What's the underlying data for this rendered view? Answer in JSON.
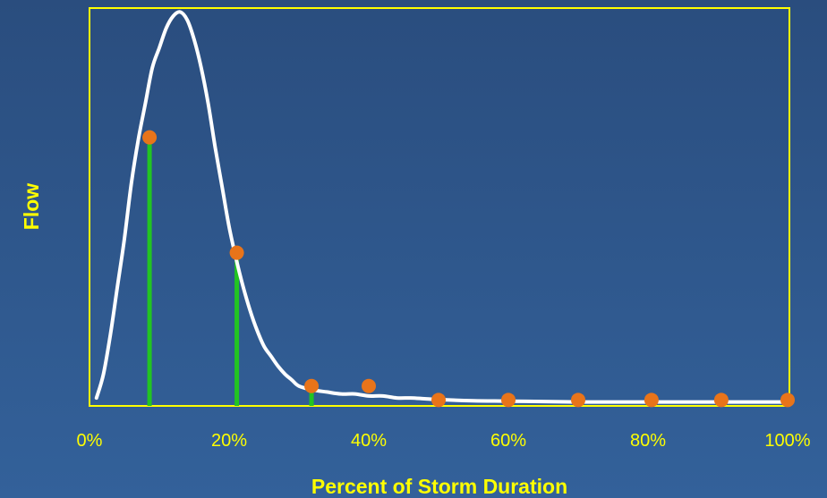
{
  "colors": {
    "background_top": "#2a4d7e",
    "background_bottom": "#33619a",
    "axis": "#ffff00",
    "curve": "#ffffff",
    "markers": "#e8741a",
    "stems": "#22c422",
    "labels": "#ffff00"
  },
  "chart_data": {
    "type": "line",
    "title": "",
    "xlabel": "Percent of Storm Duration",
    "ylabel": "Flow",
    "xlim": [
      0,
      100
    ],
    "ylim": [
      0,
      100
    ],
    "x_ticks": [
      0,
      20,
      40,
      60,
      80,
      100
    ],
    "x_tick_labels": [
      "0%",
      "20%",
      "40%",
      "60%",
      "80%",
      "100%"
    ],
    "y_tick_labels": [],
    "grid": false,
    "legend": "none",
    "series": [
      {
        "style": "curve",
        "x": [
          1,
          2,
          3,
          4,
          5,
          6,
          7,
          8,
          9,
          10,
          11,
          12,
          13,
          14,
          15,
          16,
          17,
          18,
          19,
          20,
          21,
          22,
          23,
          24,
          25,
          26,
          27,
          28,
          29,
          30,
          32,
          34,
          36,
          38,
          40,
          42,
          44,
          46,
          48,
          50,
          55,
          60,
          65,
          70,
          75,
          80,
          85,
          90,
          95,
          100
        ],
        "y": [
          2,
          8,
          18,
          30,
          42,
          56,
          67,
          76,
          85,
          90,
          95,
          98,
          99,
          97,
          92,
          85,
          76,
          65,
          55,
          45,
          37,
          30,
          24,
          19,
          15,
          12.5,
          10,
          8,
          6.5,
          5,
          4,
          3.5,
          3,
          3,
          2.5,
          2.5,
          2,
          2,
          1.8,
          1.6,
          1.3,
          1.2,
          1.1,
          1,
          1,
          1,
          1,
          1,
          1,
          1
        ]
      },
      {
        "style": "markers",
        "x": [
          8.6,
          21.1,
          31.8,
          40,
          50,
          60,
          70,
          80.5,
          90.5,
          100
        ],
        "y": [
          67.5,
          38.5,
          5,
          5,
          1.5,
          1.5,
          1.5,
          1.5,
          1.5,
          1.5
        ]
      },
      {
        "style": "stems",
        "x": [
          8.6,
          21.1,
          31.8
        ],
        "y": [
          67.5,
          38.5,
          5
        ]
      }
    ]
  }
}
